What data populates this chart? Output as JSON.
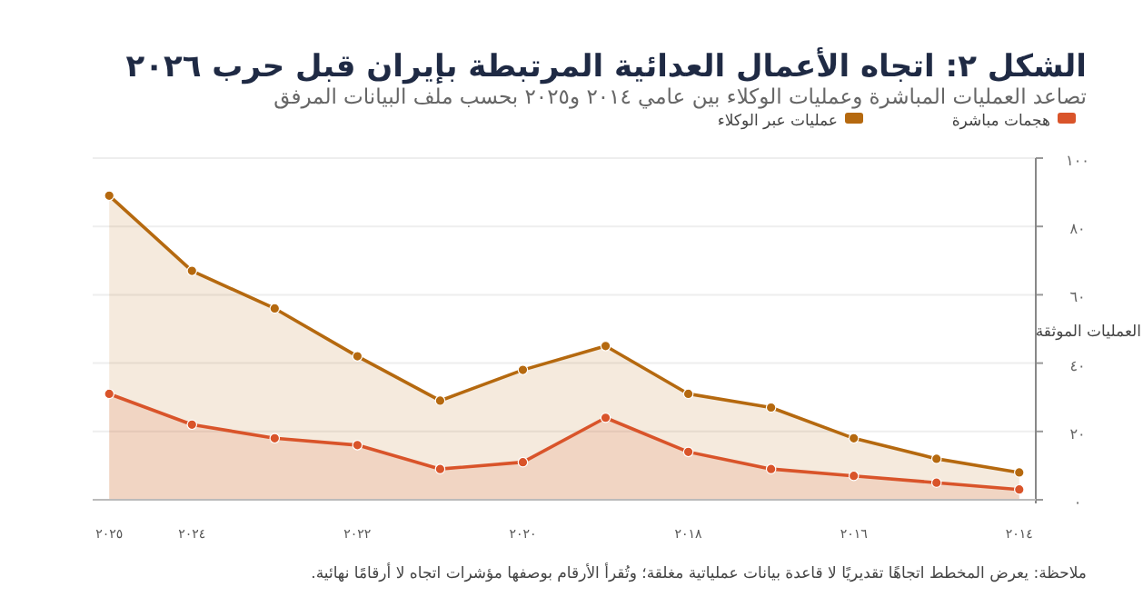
{
  "chart_data": {
    "type": "area",
    "title": "الشكل ٢: اتجاه الأعمال العدائية المرتبطة بإيران قبل حرب ٢٠٢٦",
    "subtitle": "تصاعد العمليات المباشرة وعمليات الوكلاء بين عامي ٢٠١٤ و٢٠٢٥ بحسب ملف البيانات المرفق",
    "ylabel": "العمليات الموثقة",
    "annotations": [
      "ملاحظة: يعرض المخطط اتجاهًا تقديريًا لا قاعدة بيانات عملياتية مغلقة؛ وتُقرأ الأرقام بوصفها مؤشرات اتجاه لا أرقامًا نهائية."
    ],
    "x": [
      2014,
      2015,
      2016,
      2017,
      2018,
      2019,
      2020,
      2021,
      2022,
      2023,
      2024,
      2025
    ],
    "series": [
      {
        "name": "هجمات مباشرة",
        "color": "#d9542a",
        "values": [
          3,
          5,
          7,
          9,
          14,
          24,
          11,
          9,
          16,
          18,
          22,
          31
        ]
      },
      {
        "name": "عمليات عبر الوكلاء",
        "color": "#b5690f",
        "values": [
          8,
          12,
          18,
          27,
          31,
          45,
          38,
          29,
          42,
          56,
          67,
          89
        ]
      }
    ],
    "xlim": [
      2025.2,
      2013.8
    ],
    "xticks": [
      {
        "value": 2014,
        "label": "٢٠١٤"
      },
      {
        "value": 2016,
        "label": "٢٠١٦"
      },
      {
        "value": 2018,
        "label": "٢٠١٨"
      },
      {
        "value": 2020,
        "label": "٢٠٢٠"
      },
      {
        "value": 2022,
        "label": "٢٠٢٢"
      },
      {
        "value": 2024,
        "label": "٢٠٢٤"
      },
      {
        "value": 2025,
        "label": "٢٠٢٥"
      }
    ],
    "ylim": [
      0,
      100
    ],
    "yticks": [
      {
        "value": 0,
        "label": "٠"
      },
      {
        "value": 20,
        "label": "٢٠"
      },
      {
        "value": 40,
        "label": "٤٠"
      },
      {
        "value": 60,
        "label": "٦٠"
      },
      {
        "value": 80,
        "label": "٨٠"
      },
      {
        "value": 100,
        "label": "١٠٠"
      }
    ],
    "grid": "y",
    "legend": "top",
    "marker": "circle"
  }
}
